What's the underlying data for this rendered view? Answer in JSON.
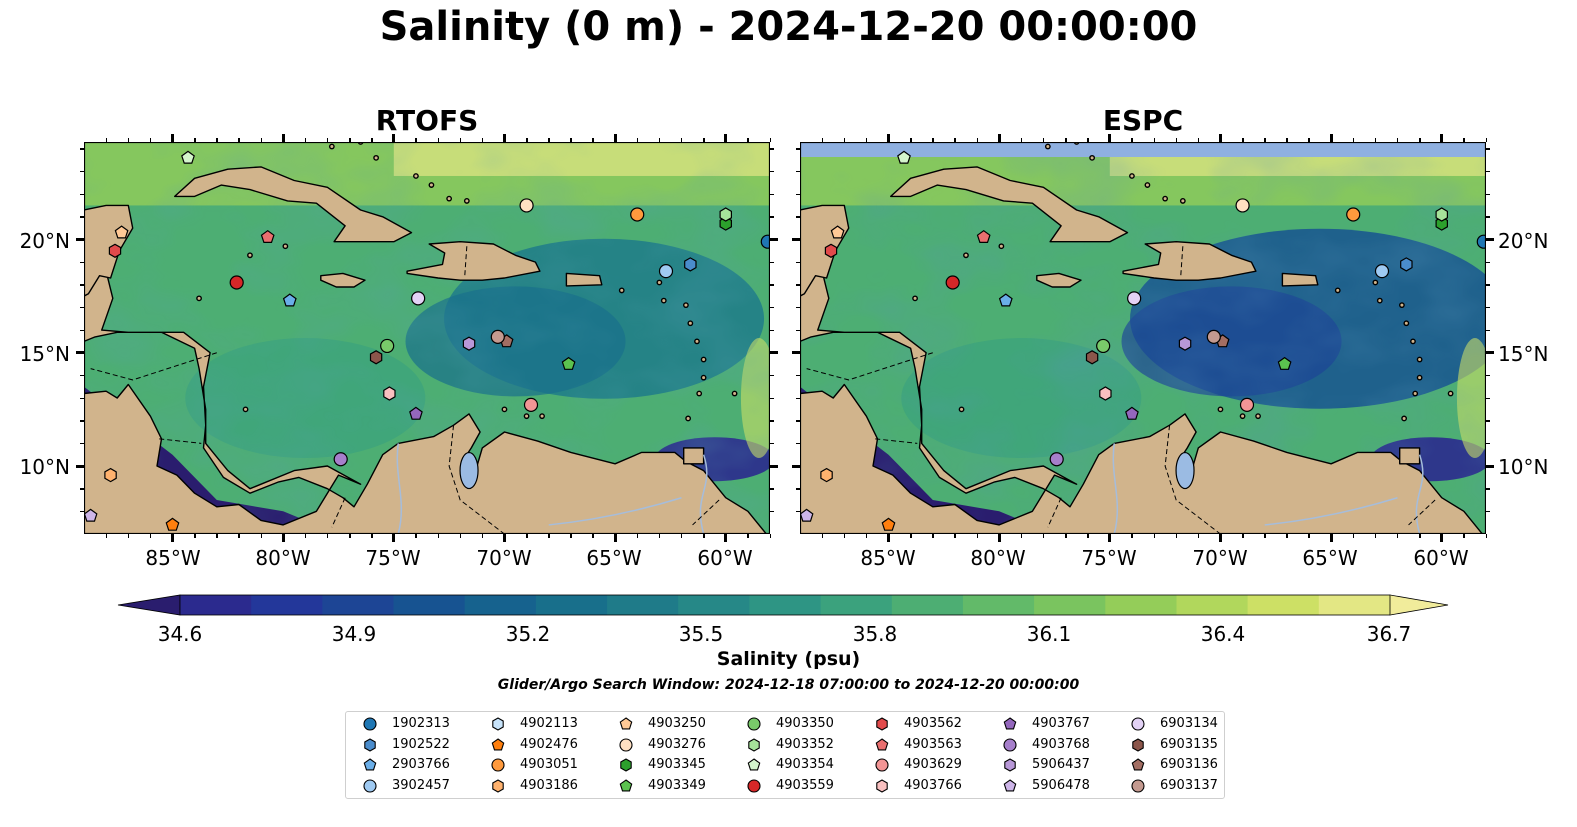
{
  "title": "Salinity (0 m) - 2024-12-20 00:00:00",
  "panels": [
    {
      "title": "RTOFS"
    },
    {
      "title": "ESPC"
    }
  ],
  "axes": {
    "lon_ticks": [
      "85°W",
      "80°W",
      "75°W",
      "70°W",
      "65°W",
      "60°W"
    ],
    "lat_ticks": [
      "20°N",
      "15°N",
      "10°N"
    ]
  },
  "colorbar": {
    "label": "Salinity (psu)",
    "ticks": [
      "34.6",
      "34.9",
      "35.2",
      "35.5",
      "35.8",
      "36.1",
      "36.4",
      "36.7"
    ],
    "colors": [
      "#2a1d6e",
      "#2b2a8e",
      "#23379a",
      "#1d4595",
      "#175391",
      "#16628e",
      "#186f8b",
      "#1f7b89",
      "#268887",
      "#2e9584",
      "#3ba27d",
      "#4dae73",
      "#62ba69",
      "#7ac45f",
      "#94cd59",
      "#b1d75c",
      "#cde065",
      "#e3e784",
      "#f1ec9b"
    ],
    "extend": "both"
  },
  "search_window": "Glider/Argo Search Window: 2024-12-18 07:00:00 to 2024-12-20 00:00:00",
  "legend": [
    {
      "id": "1902313",
      "marker": "circle",
      "color": "#1f77b4"
    },
    {
      "id": "1902522",
      "marker": "hexagon",
      "color": "#4a8ccc"
    },
    {
      "id": "2903766",
      "marker": "pentagon",
      "color": "#6aaee8"
    },
    {
      "id": "3902457",
      "marker": "circle",
      "color": "#9fcaf2"
    },
    {
      "id": "4902113",
      "marker": "hexagon",
      "color": "#c8e4fb"
    },
    {
      "id": "4902476",
      "marker": "pentagon",
      "color": "#ff7f0e"
    },
    {
      "id": "4903051",
      "marker": "circle",
      "color": "#ff9a3d"
    },
    {
      "id": "4903186",
      "marker": "hexagon",
      "color": "#ffb26e"
    },
    {
      "id": "4903250",
      "marker": "pentagon",
      "color": "#ffc996"
    },
    {
      "id": "4903276",
      "marker": "circle",
      "color": "#ffe0c2"
    },
    {
      "id": "4903345",
      "marker": "hexagon",
      "color": "#2ca02c"
    },
    {
      "id": "4903349",
      "marker": "pentagon",
      "color": "#5bc24f"
    },
    {
      "id": "4903350",
      "marker": "circle",
      "color": "#79c96a"
    },
    {
      "id": "4903352",
      "marker": "hexagon",
      "color": "#a6e39a"
    },
    {
      "id": "4903354",
      "marker": "pentagon",
      "color": "#d4f5cc"
    },
    {
      "id": "4903559",
      "marker": "circle",
      "color": "#d62728"
    },
    {
      "id": "4903562",
      "marker": "hexagon",
      "color": "#e14a4b"
    },
    {
      "id": "4903563",
      "marker": "pentagon",
      "color": "#ea6f6f"
    },
    {
      "id": "4903629",
      "marker": "circle",
      "color": "#f29595"
    },
    {
      "id": "4903766",
      "marker": "hexagon",
      "color": "#f9c0c0"
    },
    {
      "id": "4903767",
      "marker": "pentagon",
      "color": "#9467bd"
    },
    {
      "id": "4903768",
      "marker": "circle",
      "color": "#a67fcb"
    },
    {
      "id": "5906437",
      "marker": "hexagon",
      "color": "#b898d8"
    },
    {
      "id": "5906478",
      "marker": "pentagon",
      "color": "#cdb5e8"
    },
    {
      "id": "6903134",
      "marker": "circle",
      "color": "#e3d2f5"
    },
    {
      "id": "6903135",
      "marker": "hexagon",
      "color": "#8c564b"
    },
    {
      "id": "6903136",
      "marker": "pentagon",
      "color": "#a36e63"
    },
    {
      "id": "6903137",
      "marker": "circle",
      "color": "#c49a90"
    }
  ],
  "chart_data": {
    "type": "heatmap",
    "title": "Salinity (0 m) - 2024-12-20 00:00:00",
    "colorbar_label": "Salinity (psu)",
    "clim": [
      34.6,
      36.7
    ],
    "lon_range": [
      -89,
      -58
    ],
    "lat_range": [
      7,
      24.3
    ],
    "panels": [
      "RTOFS",
      "ESPC"
    ],
    "observations": [
      {
        "id": "1902313",
        "lon": -58.1,
        "lat": 19.9
      },
      {
        "id": "1902522",
        "lon": -61.6,
        "lat": 18.9
      },
      {
        "id": "2903766",
        "lon": -79.7,
        "lat": 17.3
      },
      {
        "id": "3902457",
        "lon": -62.7,
        "lat": 18.6
      },
      {
        "id": "4902476",
        "lon": -85.0,
        "lat": 7.4
      },
      {
        "id": "4903051",
        "lon": -64.0,
        "lat": 21.1
      },
      {
        "id": "4903186",
        "lon": -87.8,
        "lat": 9.6
      },
      {
        "id": "4903250",
        "lon": -87.3,
        "lat": 20.3
      },
      {
        "id": "4903276",
        "lon": -69.0,
        "lat": 21.5
      },
      {
        "id": "4903345",
        "lon": -60.0,
        "lat": 20.7
      },
      {
        "id": "4903349",
        "lon": -67.1,
        "lat": 14.5
      },
      {
        "id": "4903350",
        "lon": -75.3,
        "lat": 15.3
      },
      {
        "id": "4903352",
        "lon": -60.0,
        "lat": 21.1
      },
      {
        "id": "4903354",
        "lon": -84.3,
        "lat": 23.6
      },
      {
        "id": "4903559",
        "lon": -82.1,
        "lat": 18.1
      },
      {
        "id": "4903562",
        "lon": -87.6,
        "lat": 19.5
      },
      {
        "id": "4903563",
        "lon": -80.7,
        "lat": 20.1
      },
      {
        "id": "4903629",
        "lon": -68.8,
        "lat": 12.7
      },
      {
        "id": "4903766",
        "lon": -75.2,
        "lat": 13.2
      },
      {
        "id": "4903767",
        "lon": -74.0,
        "lat": 12.3
      },
      {
        "id": "4903768",
        "lon": -77.4,
        "lat": 10.3
      },
      {
        "id": "5906437",
        "lon": -71.6,
        "lat": 15.4
      },
      {
        "id": "5906478",
        "lon": -88.7,
        "lat": 7.8
      },
      {
        "id": "6903134",
        "lon": -73.9,
        "lat": 17.4
      },
      {
        "id": "6903135",
        "lon": -75.8,
        "lat": 14.8
      },
      {
        "id": "6903136",
        "lon": -69.9,
        "lat": 15.5
      },
      {
        "id": "6903137",
        "lon": -70.3,
        "lat": 15.7
      }
    ]
  }
}
